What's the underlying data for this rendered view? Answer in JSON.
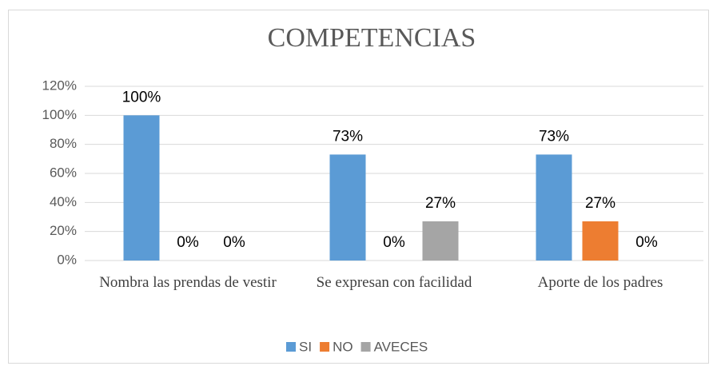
{
  "chart_data": {
    "type": "bar",
    "title": "COMPETENCIAS",
    "categories": [
      "Nombra las prendas de vestir",
      "Se expresan con facilidad",
      "Aporte de los padres"
    ],
    "series": [
      {
        "name": "SI",
        "color": "#5b9bd5",
        "values": [
          100,
          73,
          73
        ],
        "value_labels": [
          "100%",
          "73%",
          "73%"
        ]
      },
      {
        "name": "NO",
        "color": "#ed7d31",
        "values": [
          0,
          0,
          27
        ],
        "value_labels": [
          "0%",
          "0%",
          "27%"
        ]
      },
      {
        "name": "AVECES",
        "color": "#a5a5a5",
        "values": [
          0,
          27,
          0
        ],
        "value_labels": [
          "0%",
          "27%",
          "0%"
        ]
      }
    ],
    "ylim": [
      0,
      120
    ],
    "yticks": [
      {
        "value": 0,
        "label": "0%"
      },
      {
        "value": 20,
        "label": "20%"
      },
      {
        "value": 40,
        "label": "40%"
      },
      {
        "value": 60,
        "label": "60%"
      },
      {
        "value": 80,
        "label": "80%"
      },
      {
        "value": 100,
        "label": "100%"
      },
      {
        "value": 120,
        "label": "120%"
      }
    ],
    "grid": true,
    "legend": "bottom"
  }
}
